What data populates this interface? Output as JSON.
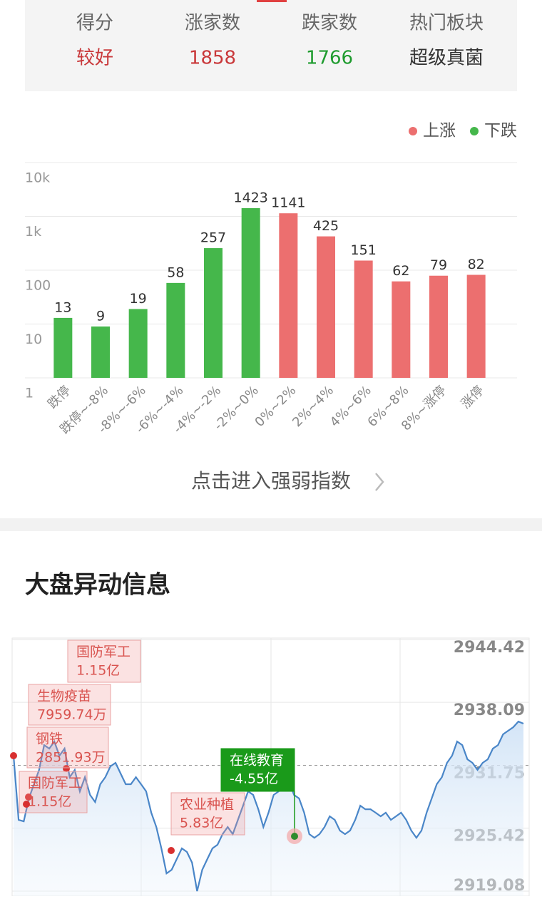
{
  "summary": {
    "headers": [
      "得分",
      "涨家数",
      "跌家数",
      "热门板块"
    ],
    "values": [
      "较好",
      "1858",
      "1766",
      "超级真菌"
    ],
    "colors": [
      "#c9383a",
      "#c9383a",
      "#1e9b2e",
      "#333333"
    ]
  },
  "link": "点击进入强弱指数",
  "section_title": "大盘异动信息",
  "chart_data": [
    {
      "type": "bar",
      "log_scale": true,
      "grid": true,
      "legend": "top-right",
      "categories": [
        "跌停",
        "跌停~-8%",
        "-8%~-6%",
        "-6%~-4%",
        "-4%~-2%",
        "-2%~0%",
        "0%~2%",
        "2%~4%",
        "4%~6%",
        "6%~8%",
        "8%~涨停",
        "涨停"
      ],
      "series": [
        {
          "name": "上涨",
          "color": "#ec6f6f",
          "values": [
            null,
            null,
            null,
            null,
            null,
            null,
            1141,
            425,
            151,
            62,
            79,
            82
          ]
        },
        {
          "name": "下跌",
          "color": "#45b74b",
          "values": [
            13,
            9,
            19,
            58,
            257,
            1423,
            null,
            null,
            null,
            null,
            null,
            null
          ]
        }
      ],
      "ylim": [
        1,
        10000
      ],
      "yticks": [
        1,
        10,
        100,
        {
          "value": 1000,
          "label": "1k"
        },
        {
          "value": 10000,
          "label": "10k"
        }
      ]
    },
    {
      "type": "line",
      "grid": true,
      "series": [
        {
          "color": "#4a86c8",
          "values": [
            2932.72,
            2926.26,
            2926.11,
            2928.41,
            2929.85,
            2931.28,
            2933.79,
            2933.44,
            2934.15,
            2932.72,
            2933.44,
            2930.56,
            2931.28,
            2929.13,
            2930.56,
            2928.77,
            2928.05,
            2929.85,
            2930.56,
            2931.64,
            2932.0,
            2930.92,
            2929.85,
            2929.85,
            2930.56,
            2929.85,
            2929.13,
            2926.98,
            2925.54,
            2923.39,
            2920.87,
            2921.23,
            2922.31,
            2923.39,
            2923.03,
            2921.95,
            2919.08,
            2921.23,
            2922.31,
            2923.39,
            2923.75,
            2924.82,
            2925.54,
            2924.82,
            2926.26,
            2927.69,
            2929.13,
            2928.77,
            2927.33,
            2925.54,
            2926.98,
            2928.77,
            2929.13,
            2929.85,
            2930.21,
            2928.77,
            2928.41,
            2926.98,
            2924.82,
            2924.46,
            2924.82,
            2925.54,
            2926.62,
            2926.26,
            2925.18,
            2924.82,
            2925.18,
            2926.26,
            2927.69,
            2927.33,
            2927.33,
            2926.98,
            2926.62,
            2926.98,
            2926.26,
            2926.62,
            2926.98,
            2926.26,
            2925.18,
            2924.46,
            2925.18,
            2926.98,
            2928.41,
            2929.85,
            2930.56,
            2932.0,
            2932.72,
            2934.15,
            2933.79,
            2932.36,
            2932.0,
            2931.28,
            2932.0,
            2932.36,
            2933.44,
            2933.79,
            2934.87,
            2935.23,
            2935.59,
            2936.16,
            2935.95
          ]
        }
      ],
      "ylim": [
        2919.08,
        2944.42
      ],
      "yticks": [
        2919.08,
        2925.42,
        2931.75,
        2938.09,
        2944.42
      ],
      "annotations": [
        {
          "label": "国防军工",
          "amount": "1.15亿",
          "color": "#d9534f"
        },
        {
          "label": "生物疫苗",
          "amount": "7959.74万",
          "color": "#d9534f"
        },
        {
          "label": "钢铁",
          "amount": "2851.93万",
          "color": "#d9534f"
        },
        {
          "label": "国防军工",
          "amount": "1.15亿",
          "color": "#d9534f"
        },
        {
          "label": "农业种植",
          "amount": "5.83亿",
          "color": "#d9534f"
        },
        {
          "label": "在线教育",
          "amount": "-4.55亿",
          "color": "#1a9a1a"
        }
      ]
    }
  ]
}
